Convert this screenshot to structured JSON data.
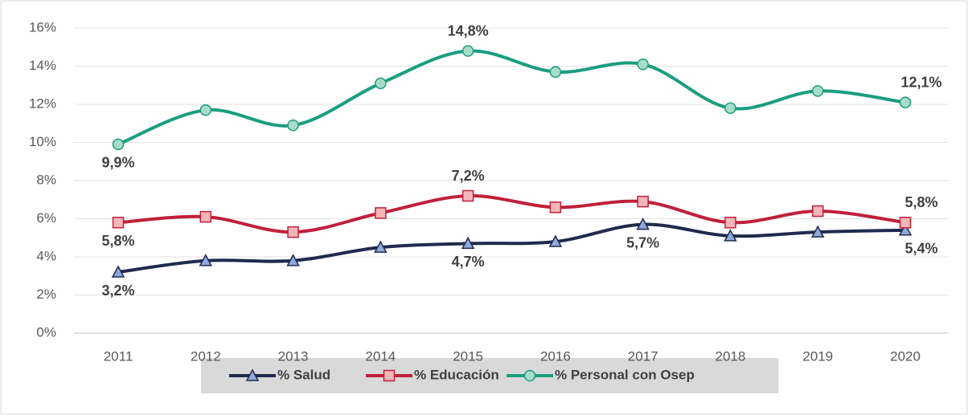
{
  "chart_data": {
    "type": "line",
    "categories": [
      "2011",
      "2012",
      "2013",
      "2014",
      "2015",
      "2016",
      "2017",
      "2018",
      "2019",
      "2020"
    ],
    "series": [
      {
        "name": "% Salud",
        "color": "#1f2a4e",
        "marker_color": "#8ea9db",
        "marker": "triangle",
        "values": [
          3.2,
          3.8,
          3.8,
          4.5,
          4.7,
          4.8,
          5.7,
          5.1,
          5.3,
          5.4
        ],
        "value_labels": [
          "3,2%",
          null,
          null,
          null,
          "4,7%",
          null,
          "5,7%",
          null,
          null,
          "5,4%"
        ]
      },
      {
        "name": "% Educación",
        "color": "#c0203a",
        "marker_color": "#f4b6b6",
        "marker": "square",
        "values": [
          5.8,
          6.1,
          5.3,
          6.3,
          7.2,
          6.6,
          6.9,
          5.8,
          6.4,
          5.8
        ],
        "value_labels": [
          "5,8%",
          null,
          null,
          null,
          "7,2%",
          null,
          null,
          null,
          null,
          "5,8%"
        ]
      },
      {
        "name": "% Personal con Osep",
        "color": "#1a9e7e",
        "marker_color": "#a9dcc8",
        "marker": "circle",
        "values": [
          9.9,
          11.7,
          10.9,
          13.1,
          14.8,
          13.7,
          14.1,
          11.8,
          12.7,
          12.1
        ],
        "value_labels": [
          "9,9%",
          null,
          null,
          null,
          "14,8%",
          null,
          null,
          null,
          null,
          "12,1%"
        ]
      }
    ],
    "ylim": [
      0,
      16
    ],
    "yticks": [
      {
        "value": 0,
        "label": "0%"
      },
      {
        "value": 2,
        "label": "2%"
      },
      {
        "value": 4,
        "label": "4%"
      },
      {
        "value": 6,
        "label": "6%"
      },
      {
        "value": 8,
        "label": "8%"
      },
      {
        "value": 10,
        "label": "10%"
      },
      {
        "value": 12,
        "label": "12%"
      },
      {
        "value": 14,
        "label": "14%"
      },
      {
        "value": 16,
        "label": "16%"
      }
    ],
    "grid": true,
    "legend": "bottom",
    "smooth": true
  }
}
